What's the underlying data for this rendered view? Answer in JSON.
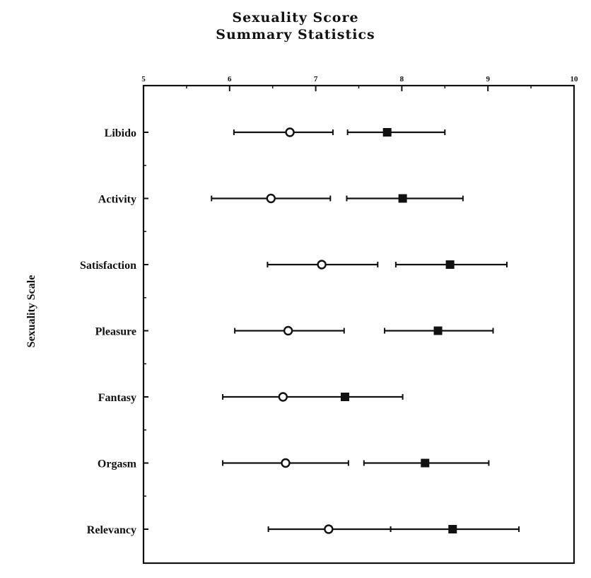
{
  "chart_data": {
    "type": "scatter",
    "title": "Sexuality Score",
    "subtitle": "Summary Statistics",
    "ylabel": "Sexuality Scale",
    "xlabel": "",
    "xlim": [
      5,
      10
    ],
    "x_ticks": [
      "5",
      "6",
      "7",
      "8",
      "9",
      "10"
    ],
    "categories": [
      "Libido",
      "Activity",
      "Satisfaction",
      "Pleasure",
      "Fantasy",
      "Orgasm",
      "Relevancy"
    ],
    "grid": false,
    "legend": "none",
    "series": [
      {
        "marker": "open-circle",
        "color": "#111111",
        "values": [
          6.7,
          6.48,
          7.07,
          6.68,
          6.62,
          6.65,
          7.15
        ],
        "lower": [
          6.05,
          5.79,
          6.44,
          6.06,
          5.92,
          5.92,
          6.45
        ],
        "upper": [
          7.2,
          7.17,
          7.72,
          7.33,
          7.34,
          7.38,
          7.87
        ]
      },
      {
        "marker": "filled-square",
        "color": "#111111",
        "values": [
          7.83,
          8.01,
          8.56,
          8.42,
          7.34,
          8.27,
          8.59
        ],
        "lower": [
          7.37,
          7.36,
          7.93,
          7.8,
          7.34,
          7.56,
          7.87
        ],
        "upper": [
          8.5,
          8.71,
          9.22,
          9.06,
          8.01,
          9.01,
          9.36
        ]
      }
    ]
  }
}
